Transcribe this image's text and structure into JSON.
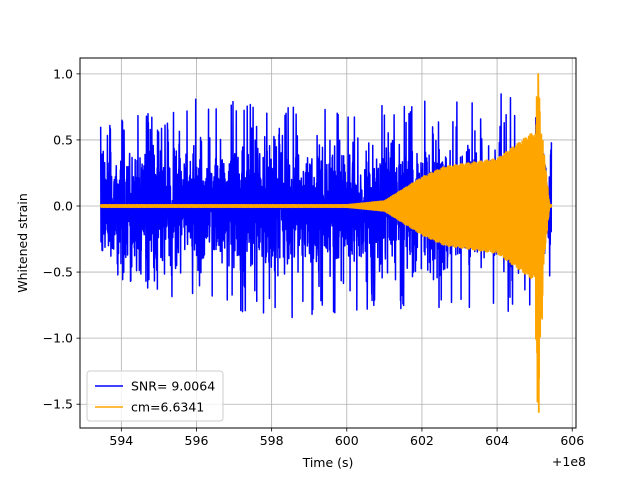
{
  "chart_data": {
    "type": "line",
    "title": "",
    "xlabel": "Time (s)",
    "ylabel": "Whitened strain",
    "x_offset_label": "+1e8",
    "x_offset": 100000000,
    "xlim": [
      592.9,
      606.1
    ],
    "ylim": [
      -1.68,
      1.12
    ],
    "xticks": [
      594,
      596,
      598,
      600,
      602,
      604,
      606
    ],
    "yticks": [
      1.0,
      0.5,
      0.0,
      -0.5,
      -1.0,
      -1.5
    ],
    "xtick_labels": [
      "594",
      "596",
      "598",
      "600",
      "602",
      "604",
      "606"
    ],
    "ytick_labels": [
      "1.0",
      "0.5",
      "0.0",
      "−0.5",
      "−1.0",
      "−1.5"
    ],
    "grid": true,
    "legend_position": "lower-left",
    "series": [
      {
        "name": "SNR= 9.0064",
        "color": "#0000ff",
        "kind": "noise",
        "x_range": [
          593.45,
          605.45
        ],
        "approx_envelope": [
          {
            "x": 593.45,
            "max": 0.6,
            "min": -0.5
          },
          {
            "x": 596.0,
            "max": 0.82,
            "min": -0.75
          },
          {
            "x": 598.5,
            "max": 0.8,
            "min": -0.85
          },
          {
            "x": 601.5,
            "max": 0.75,
            "min": -0.78
          },
          {
            "x": 604.9,
            "max": 1.0,
            "min": -0.8
          },
          {
            "x": 605.45,
            "max": 0.55,
            "min": -0.55
          }
        ]
      },
      {
        "name": "cm=6.6341",
        "color": "#ffa500",
        "kind": "chirp",
        "x_range": [
          593.45,
          605.45
        ],
        "approx_envelope": [
          {
            "x": 593.45,
            "amp": 0.01
          },
          {
            "x": 600.0,
            "amp": 0.01
          },
          {
            "x": 601.0,
            "amp": 0.04
          },
          {
            "x": 602.0,
            "amp": 0.22
          },
          {
            "x": 602.6,
            "amp": 0.3
          },
          {
            "x": 604.0,
            "amp": 0.36
          },
          {
            "x": 604.9,
            "amp": 0.55
          },
          {
            "x": 605.1,
            "max": 1.0,
            "min": -1.56
          },
          {
            "x": 605.45,
            "amp": 0.01
          }
        ]
      }
    ]
  }
}
